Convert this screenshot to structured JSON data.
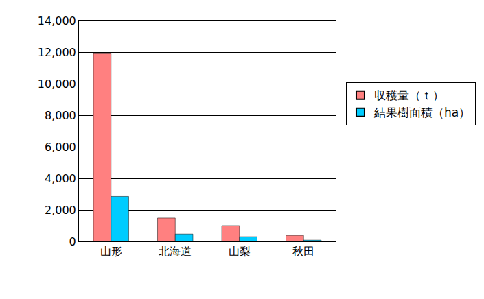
{
  "chart_data": {
    "type": "bar",
    "categories": [
      "山形",
      "北海道",
      "山梨",
      "秋田"
    ],
    "series": [
      {
        "name": "収穫量（ｔ）",
        "color": "#ff8080",
        "values": [
          11900,
          1480,
          1000,
          380
        ]
      },
      {
        "name": "結果樹面積（ha）",
        "color": "#00ccff",
        "values": [
          2850,
          470,
          300,
          80
        ]
      }
    ],
    "ylim": [
      0,
      14000
    ],
    "yticks": [
      0,
      {
        "value": 2000,
        "label": "2,000"
      },
      {
        "value": 4000,
        "label": "4,000"
      },
      {
        "value": 6000,
        "label": "6,000"
      },
      {
        "value": 8000,
        "label": "8,000"
      },
      {
        "value": 10000,
        "label": "10,000"
      },
      {
        "value": 12000,
        "label": "12,000"
      },
      {
        "value": 14000,
        "label": "14,000"
      }
    ],
    "grid": true,
    "legend": "right"
  }
}
